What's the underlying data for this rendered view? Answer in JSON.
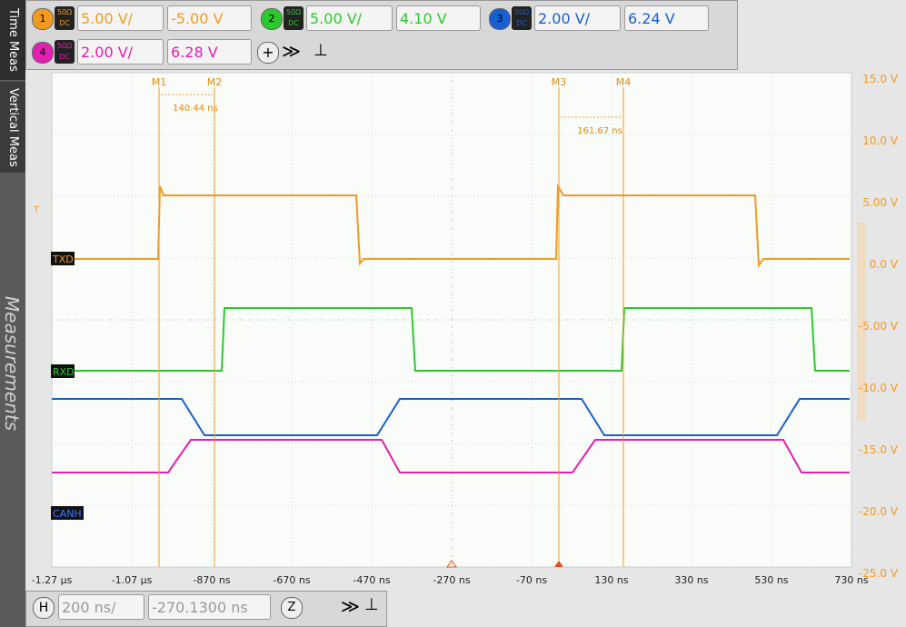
{
  "toolbar": {
    "channels": [
      {
        "number": "1",
        "impedance": "50Ω",
        "coupling": "DC",
        "scale": "5.00 V/",
        "offset": "-5.00 V",
        "color": "#f29a1f"
      },
      {
        "number": "2",
        "impedance": "50Ω",
        "coupling": "DC",
        "scale": "5.00 V/",
        "offset": "4.10 V",
        "color": "#2ec82e"
      },
      {
        "number": "3",
        "impedance": "50Ω",
        "coupling": "DC",
        "scale": "2.00 V/",
        "offset": "6.24 V",
        "color": "#1a5fd0"
      },
      {
        "number": "4",
        "impedance": "50Ω",
        "coupling": "DC",
        "scale": "2.00 V/",
        "offset": "6.28 V",
        "color": "#e020b0"
      }
    ]
  },
  "side_tabs": {
    "time": "Time Meas",
    "vertical": "Vertical Meas",
    "watermark": "Measurements"
  },
  "plot": {
    "y_labels": [
      "15.0 V",
      "10.0 V",
      "5.00 V",
      "0.0 V",
      "-5.00 V",
      "-10.0 V",
      "-15.0 V",
      "-20.0 V",
      "-25.0 V"
    ],
    "x_labels": [
      "-1.27 µs",
      "-1.07 µs",
      "-870 ns",
      "-670 ns",
      "-470 ns",
      "-270 ns",
      "-70 ns",
      "130 ns",
      "330 ns",
      "530 ns",
      "730 ns"
    ],
    "cursors": [
      "M1",
      "M2",
      "M3",
      "M4"
    ],
    "deltas": [
      "140.44 ns",
      "161.67 ns"
    ],
    "trace_labels": [
      "TXD",
      "RXD",
      "CANH"
    ],
    "trigger": "T"
  },
  "bottom": {
    "h": "H",
    "scale": "200 ns/",
    "position": "-270.1300 ns",
    "zoom": "Z"
  }
}
